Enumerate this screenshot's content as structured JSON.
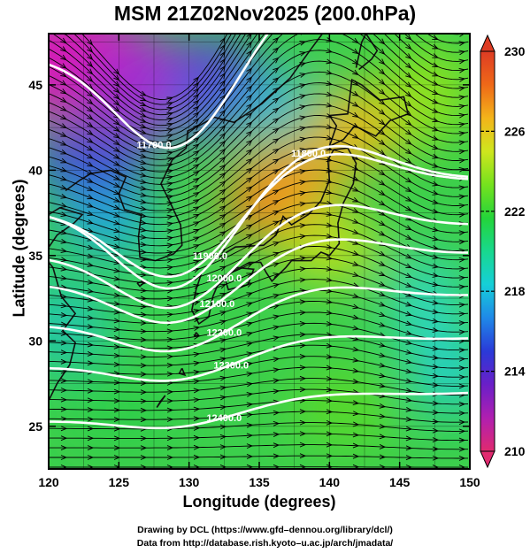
{
  "title": "MSM 21Z02Nov2025 (200.0hPa)",
  "map": {
    "xlabel": "Longitude (degrees)",
    "ylabel": "Latitude  (degrees)",
    "xlim": [
      120,
      150
    ],
    "ylim": [
      22.5,
      48
    ],
    "x_ticks": [
      120,
      125,
      130,
      135,
      140,
      145,
      150
    ],
    "y_ticks": [
      25,
      30,
      35,
      40,
      45
    ],
    "field": "temperature",
    "colorbar": {
      "min": 210,
      "max": 230,
      "ticks": [
        "230",
        "226",
        "222",
        "218",
        "214",
        "210"
      ],
      "colors": [
        "#e02a6f",
        "#b01fb0",
        "#6a1fc8",
        "#2a3ad8",
        "#1f88e8",
        "#16cfd8",
        "#18d88e",
        "#24d43a",
        "#76e21e",
        "#cfe61e",
        "#f3b41a",
        "#ef6818",
        "#de3c24"
      ]
    },
    "contour_labels": [
      {
        "text": "11700.0",
        "lon": 127.5,
        "lat": 41.5
      },
      {
        "text": "11800.0",
        "lon": 138.5,
        "lat": 41.0
      },
      {
        "text": "11900.0",
        "lon": 131.5,
        "lat": 35.0
      },
      {
        "text": "12000.0",
        "lon": 132.5,
        "lat": 33.7
      },
      {
        "text": "12100.0",
        "lon": 132.0,
        "lat": 32.2
      },
      {
        "text": "12200.0",
        "lon": 132.5,
        "lat": 30.5
      },
      {
        "text": "12300.0",
        "lon": 133.0,
        "lat": 28.6
      },
      {
        "text": "12400.0",
        "lon": 132.5,
        "lat": 25.5
      }
    ]
  },
  "credits": {
    "line1": "Drawing by DCL (https://www.gfd–dennou.org/library/dcl/)",
    "line2": "Data from http://database.rish.kyoto–u.ac.jp/arch/jmadata/"
  }
}
